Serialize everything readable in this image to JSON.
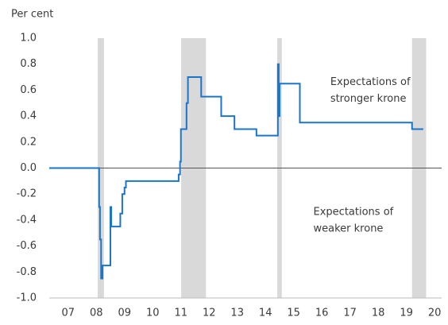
{
  "chart_data": {
    "type": "line",
    "step": "post",
    "y_axis_label": "Per cent",
    "x": [
      2006.83,
      2008.6,
      2008.63,
      2008.67,
      2008.72,
      2009.0,
      2009.03,
      2009.35,
      2009.42,
      2009.5,
      2009.55,
      2011.42,
      2011.47,
      2011.5,
      2011.7,
      2011.75,
      2012.22,
      2012.93,
      2013.4,
      2014.18,
      2014.94,
      2014.97,
      2015.0,
      2015.72,
      2019.7,
      2020.1
    ],
    "series": [
      {
        "color": "#1b75c8",
        "values": [
          0,
          -0.3,
          -0.55,
          -0.85,
          -0.75,
          -0.3,
          -0.45,
          -0.35,
          -0.2,
          -0.15,
          -0.1,
          -0.05,
          0.05,
          0.3,
          0.5,
          0.7,
          0.55,
          0.4,
          0.3,
          0.25,
          0.8,
          0.4,
          0.65,
          0.35,
          0.3,
          0.3
        ]
      }
    ],
    "shaded_periods": [
      [
        2008.55,
        2008.77
      ],
      [
        2011.51,
        2012.39
      ],
      [
        2014.92,
        2015.08
      ],
      [
        2019.7,
        2020.2
      ]
    ],
    "shade_color": "#d9d9d9",
    "xlim": [
      2006.83,
      2020.75
    ],
    "xticks": [
      {
        "value": 2007.5,
        "label": "07"
      },
      {
        "value": 2008.5,
        "label": "08"
      },
      {
        "value": 2009.5,
        "label": "09"
      },
      {
        "value": 2010.5,
        "label": "10"
      },
      {
        "value": 2011.5,
        "label": "11"
      },
      {
        "value": 2012.5,
        "label": "12"
      },
      {
        "value": 2013.5,
        "label": "13"
      },
      {
        "value": 2014.5,
        "label": "14"
      },
      {
        "value": 2015.5,
        "label": "15"
      },
      {
        "value": 2016.5,
        "label": "16"
      },
      {
        "value": 2017.5,
        "label": "17"
      },
      {
        "value": 2018.5,
        "label": "18"
      },
      {
        "value": 2019.5,
        "label": "19"
      },
      {
        "value": 2020.5,
        "label": "20"
      }
    ],
    "ylim": [
      -1,
      1
    ],
    "yticks": [
      {
        "value": 1,
        "label": "1.0"
      },
      0.8,
      0.6,
      0.4,
      0.2,
      {
        "value": 0,
        "label": "0.0"
      },
      -0.2,
      -0.4,
      -0.6,
      -0.8,
      {
        "value": -1,
        "label": "-1.0"
      }
    ],
    "annotations": [
      {
        "x": 2016.8,
        "y": 0.6,
        "lines": [
          "Expectations of",
          "stronger krone"
        ]
      },
      {
        "x": 2016.2,
        "y": -0.4,
        "lines": [
          "Expectations of",
          "weaker krone"
        ]
      }
    ]
  }
}
